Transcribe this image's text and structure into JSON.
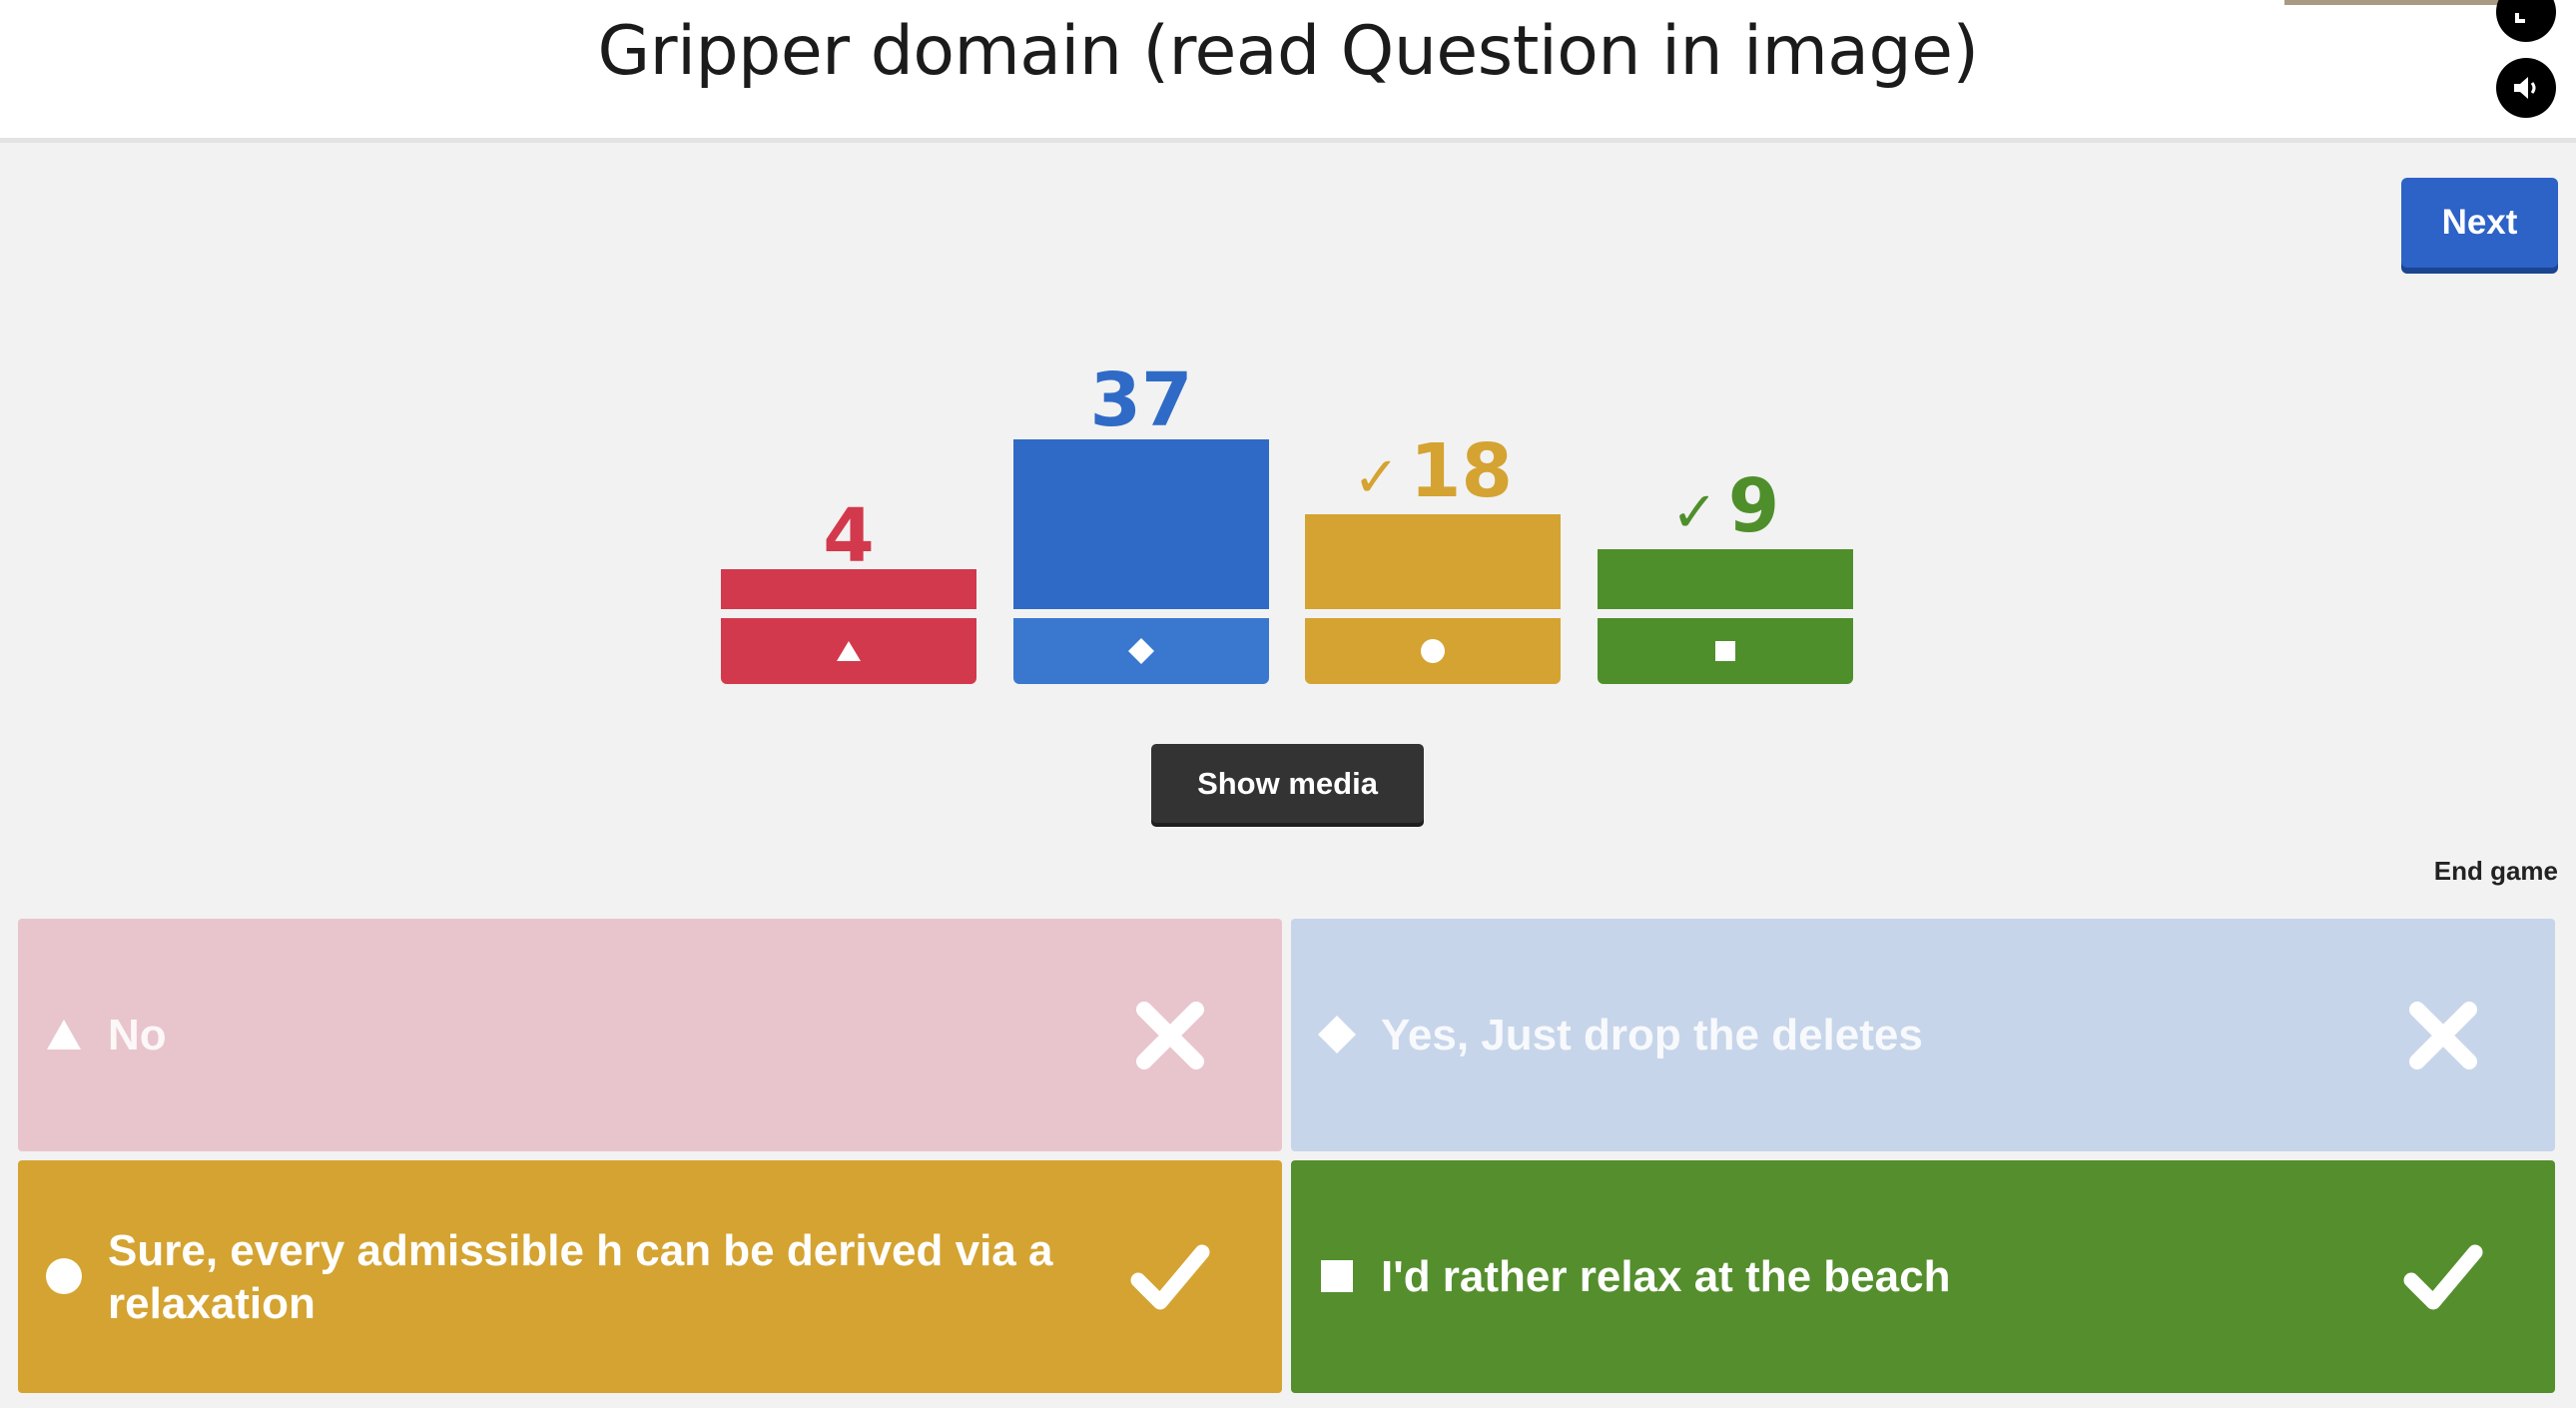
{
  "header": {
    "title": "Gripper domain (read Question in image)"
  },
  "controls": {
    "next_label": "Next",
    "show_media_label": "Show media",
    "end_game_label": "End game"
  },
  "colors": {
    "red": "#d3394c",
    "blue": "#2f6bc6",
    "yellow": "#d4a331",
    "green": "#4f8f2b",
    "red_answer_dim": "#e8c5cc",
    "blue_answer_dim": "#c7d5ea",
    "yellow_answer": "#d4a331",
    "green_answer": "#548e2d"
  },
  "chart_data": {
    "type": "bar",
    "categories": [
      "triangle",
      "diamond",
      "circle",
      "square"
    ],
    "values": [
      4,
      37,
      18,
      9
    ],
    "correct": [
      false,
      false,
      true,
      true
    ],
    "colors": [
      "#d3394c",
      "#2f6bc6",
      "#d4a331",
      "#4f8f2b"
    ]
  },
  "results": [
    {
      "value": "4",
      "shape": "triangle-icon",
      "correct": false
    },
    {
      "value": "37",
      "shape": "diamond-icon",
      "correct": false
    },
    {
      "value": "18",
      "shape": "circle-icon",
      "correct": true
    },
    {
      "value": "9",
      "shape": "square-icon",
      "correct": true
    }
  ],
  "answers": [
    {
      "shape": "triangle-icon",
      "text": "No",
      "correct": false
    },
    {
      "shape": "diamond-icon",
      "text": "Yes, Just drop the deletes",
      "correct": false
    },
    {
      "shape": "circle-icon",
      "text": "Sure, every admissible h can be derived via a relaxation",
      "correct": true
    },
    {
      "shape": "square-icon",
      "text": "I'd rather relax at the beach",
      "correct": true
    }
  ]
}
